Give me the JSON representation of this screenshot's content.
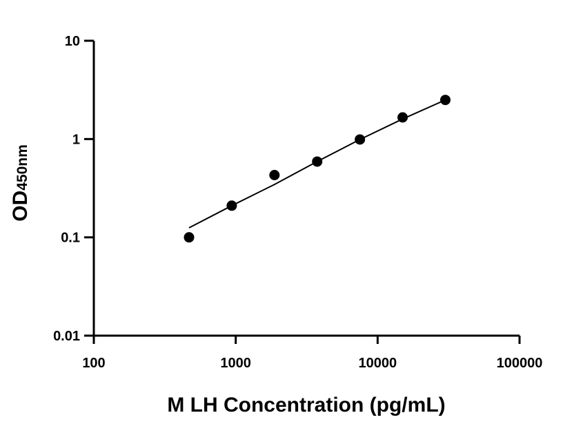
{
  "chart_data": {
    "type": "scatter",
    "x_scale": "log",
    "y_scale": "log",
    "xlabel": "M LH Concentration (pg/mL)",
    "ylabel_main": "OD",
    "ylabel_sub": "450nm",
    "xlim": [
      100,
      100000
    ],
    "ylim": [
      0.01,
      10
    ],
    "x_ticks": [
      "100",
      "1000",
      "10000",
      "100000"
    ],
    "y_ticks": [
      "0.01",
      "0.1",
      "1",
      "10"
    ],
    "grid": false,
    "series": [
      {
        "points": [
          {
            "x": 468.75,
            "y": 0.1
          },
          {
            "x": 937.5,
            "y": 0.21
          },
          {
            "x": 1875,
            "y": 0.43
          },
          {
            "x": 3750,
            "y": 0.59
          },
          {
            "x": 7500,
            "y": 0.99
          },
          {
            "x": 15000,
            "y": 1.66
          },
          {
            "x": 30000,
            "y": 2.5
          }
        ],
        "fit_line": [
          {
            "x": 468.75,
            "y": 0.125
          },
          {
            "x": 937.5,
            "y": 0.21
          },
          {
            "x": 1875,
            "y": 0.345
          },
          {
            "x": 3750,
            "y": 0.59
          },
          {
            "x": 7500,
            "y": 0.99
          },
          {
            "x": 15000,
            "y": 1.6
          },
          {
            "x": 30000,
            "y": 2.5
          }
        ],
        "marker_color": "#000000",
        "line_color": "#000000"
      }
    ]
  }
}
